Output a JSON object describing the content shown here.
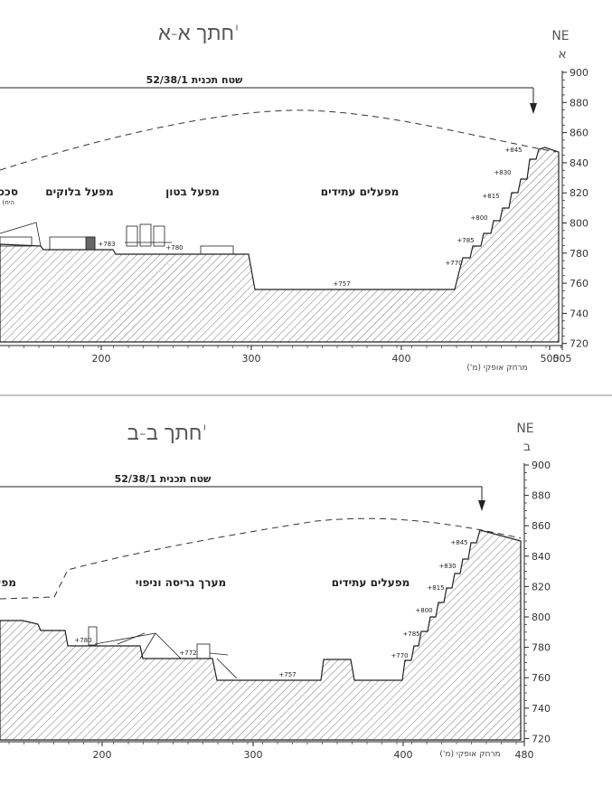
{
  "sections": [
    {
      "id": "A",
      "title": "חתך א-א'",
      "direction": "NE",
      "marker": "א",
      "plan_label": "52/38/1 שטח תכנית",
      "x_axis_label": "מרחק אופקי (מ')",
      "zone_labels": [
        "סכככ",
        "(היח",
        "מפעל בלוקים",
        "מפעל בטון",
        "מפעלים עתידים"
      ],
      "x_ticks": [
        "200",
        "300",
        "400",
        "500",
        "505"
      ],
      "y_ticks": [
        "900",
        "880",
        "860",
        "840",
        "820",
        "800",
        "780",
        "760",
        "740",
        "720"
      ],
      "levels": [
        "+845",
        "+830",
        "+815",
        "+800",
        "+785",
        "+770",
        "+783",
        "+780",
        "+757"
      ]
    },
    {
      "id": "B",
      "title": "חתך ב-ב'",
      "direction": "NE",
      "marker": "ב",
      "plan_label": "52/38/1 שטח תכנית",
      "x_axis_label": "מרחק אופקי (מ')",
      "zone_labels": [
        "מפעל א",
        "מערך גריסה וניפוי",
        "מפעלים עתידים"
      ],
      "x_ticks": [
        "200",
        "300",
        "400",
        "480"
      ],
      "y_ticks": [
        "900",
        "880",
        "860",
        "840",
        "820",
        "800",
        "780",
        "760",
        "740",
        "720"
      ],
      "levels": [
        "+845",
        "+830",
        "+815",
        "+800",
        "+785",
        "+770",
        "+780",
        "+772",
        "+757"
      ]
    }
  ],
  "colors": {
    "line": "#222222",
    "hatch": "#555555",
    "divider": "#888888"
  }
}
